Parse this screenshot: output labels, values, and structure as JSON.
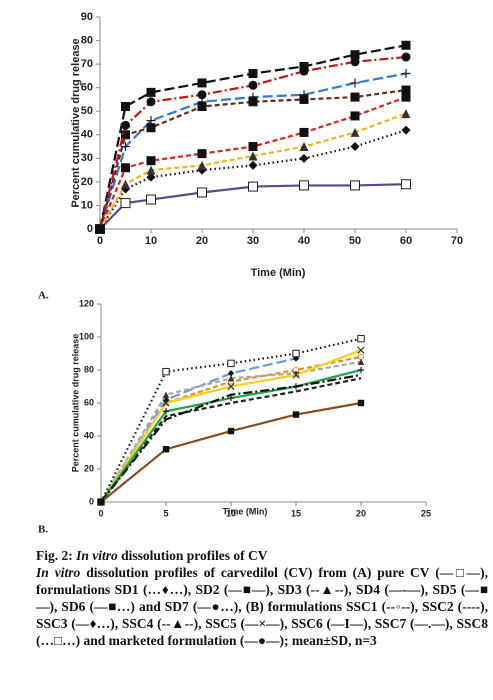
{
  "charts": [
    {
      "type": "line",
      "panel": "A.",
      "x_label": "Time (Min)",
      "y_label": "Percent cumulative drug release",
      "xlim": [
        0,
        70
      ],
      "xticks": [
        0,
        10,
        20,
        30,
        40,
        50,
        60,
        70
      ],
      "ylim": [
        0,
        90
      ],
      "yticks": [
        0,
        10,
        20,
        30,
        40,
        50,
        60,
        70,
        80,
        90
      ],
      "x": [
        0,
        5,
        10,
        20,
        30,
        40,
        50,
        60
      ],
      "series": [
        {
          "color": "#5b4a8a",
          "dash": "solid",
          "marker": "square-open",
          "values": [
            0,
            11,
            12.5,
            15.5,
            18,
            18.5,
            18.5,
            19
          ]
        },
        {
          "color": "#111111",
          "dash": "dotted",
          "marker": "diamond",
          "values": [
            0,
            17,
            22,
            25,
            27,
            30,
            35,
            42
          ]
        },
        {
          "color": "#e0201c",
          "dash": "dashed",
          "marker": "square",
          "values": [
            0,
            26,
            29,
            32,
            35,
            41,
            48,
            56
          ]
        },
        {
          "color": "#f5b323",
          "dash": "dashed",
          "marker": "triangle",
          "values": [
            0,
            19,
            25,
            27,
            31,
            35,
            41,
            49
          ]
        },
        {
          "color": "#2f7ad6",
          "dash": "longdash",
          "marker": "bar",
          "values": [
            0,
            35,
            46,
            54,
            56,
            57,
            62,
            66
          ]
        },
        {
          "color": "#6b2a1e",
          "dash": "dashed",
          "marker": "square",
          "values": [
            0,
            40,
            43,
            52,
            54,
            55,
            56,
            59
          ]
        },
        {
          "color": "#111111",
          "dash": "longdash",
          "marker": "square",
          "values": [
            0,
            52,
            58,
            62,
            66,
            69,
            74,
            78
          ]
        },
        {
          "color": "#c81414",
          "dash": "dashdot",
          "marker": "circle",
          "values": [
            0,
            44,
            54,
            57,
            61,
            67,
            71,
            73
          ]
        }
      ]
    },
    {
      "type": "line",
      "panel": "B.",
      "x_label": "Time (Min)",
      "y_label": "Percent cumulative drug release",
      "xlim": [
        0,
        25
      ],
      "xticks": [
        0,
        5,
        10,
        15,
        20,
        25
      ],
      "ylim": [
        0,
        120
      ],
      "yticks": [
        0,
        20,
        40,
        60,
        80,
        100,
        120
      ],
      "x": [
        0,
        5,
        10,
        15,
        20
      ],
      "series": [
        {
          "color": "#f08a24",
          "dash": "dashed",
          "marker": "circle-open",
          "values": [
            0,
            60,
            73,
            80,
            88
          ]
        },
        {
          "color": "#222222",
          "dash": "dashed",
          "marker": "none",
          "values": [
            0,
            52,
            60,
            67,
            75
          ]
        },
        {
          "color": "#6a9bd6",
          "dash": "longdash",
          "marker": "diamond",
          "values": [
            0,
            62,
            78,
            87,
            null
          ]
        },
        {
          "color": "#a8a8a8",
          "dash": "dashed",
          "marker": "triangle",
          "values": [
            0,
            65,
            75,
            78,
            85
          ]
        },
        {
          "color": "#f2d21b",
          "dash": "solid",
          "marker": "x",
          "values": [
            0,
            60,
            70,
            77,
            92
          ]
        },
        {
          "color": "#1fa64a",
          "dash": "solid",
          "marker": "bar",
          "values": [
            0,
            55,
            63,
            70,
            80
          ]
        },
        {
          "color": "#111111",
          "dash": "dashdot",
          "marker": "none",
          "values": [
            0,
            50,
            65,
            70,
            77
          ]
        },
        {
          "color": "#111111",
          "dash": "dotted",
          "marker": "square-open",
          "values": [
            0,
            79,
            84,
            90,
            99
          ]
        },
        {
          "color": "#8a4a1a",
          "dash": "solid",
          "marker": "square",
          "values": [
            0,
            32,
            43,
            53,
            60
          ]
        }
      ]
    }
  ],
  "caption": {
    "heading": [
      {
        "text": "Fig. 2: ",
        "italic": false
      },
      {
        "text": "In vitro",
        "italic": true
      },
      {
        "text": " dissolution profiles of CV",
        "italic": false
      }
    ],
    "body": [
      {
        "text": "In vitro",
        "italic": true
      },
      {
        "text": " dissolution profiles of carvedilol (CV) from (A) pure CV (—□—), formulations SD1 (…♦…), SD2 (—■—), SD3 (--▲--), SD4 (—-—), SD5 (—■—), SD6 (—■…) and SD7 (—●…), (B) formulations SSC1 (--◦--), SSC2 (----), SSC3 (—♦…), SSC4 (--▲--), SSC5 (—×—), SSC6 (—I—), SSC7 (—.—), SSC8 (…□…) and marketed formulation (—●—); mean±SD, n=3",
        "italic": false
      }
    ]
  }
}
